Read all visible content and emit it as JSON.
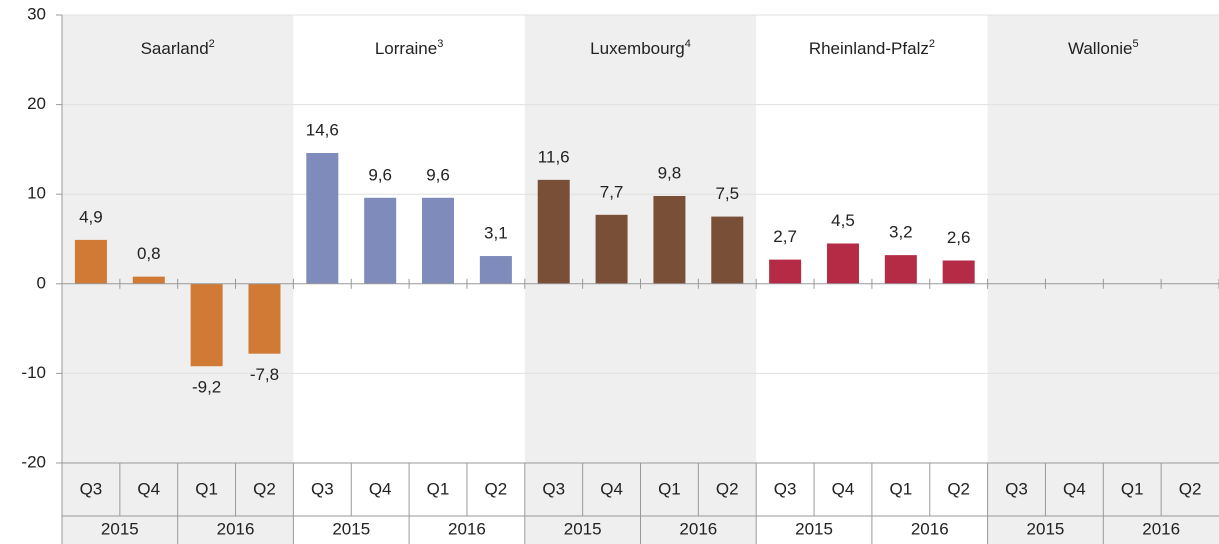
{
  "chart_data": {
    "type": "bar",
    "ylim": [
      -20,
      30
    ],
    "yticks": [
      -20,
      -10,
      0,
      10,
      20,
      30
    ],
    "grid": true,
    "groups": [
      {
        "name": "Saarland",
        "note": "2",
        "color": "#d07a35",
        "shaded": true,
        "categories": [
          "Q3",
          "Q4",
          "Q1",
          "Q2"
        ],
        "years": [
          "2015",
          "2016"
        ],
        "values": [
          4.9,
          0.8,
          -9.2,
          -7.8
        ],
        "value_labels": [
          "4,9",
          "0,8",
          "-9,2",
          "-7,8"
        ]
      },
      {
        "name": "Lorraine",
        "note": "3",
        "color": "#7f8bbb",
        "shaded": false,
        "categories": [
          "Q3",
          "Q4",
          "Q1",
          "Q2"
        ],
        "years": [
          "2015",
          "2016"
        ],
        "values": [
          14.6,
          9.6,
          9.6,
          3.1
        ],
        "value_labels": [
          "14,6",
          "9,6",
          "9,6",
          "3,1"
        ]
      },
      {
        "name": "Luxembourg",
        "note": "4",
        "color": "#7a4f37",
        "shaded": true,
        "categories": [
          "Q3",
          "Q4",
          "Q1",
          "Q2"
        ],
        "years": [
          "2015",
          "2016"
        ],
        "values": [
          11.6,
          7.7,
          9.8,
          7.5
        ],
        "value_labels": [
          "11,6",
          "7,7",
          "9,8",
          "7,5"
        ]
      },
      {
        "name": "Rheinland-Pfalz",
        "note": "2",
        "color": "#b52a45",
        "shaded": false,
        "categories": [
          "Q3",
          "Q4",
          "Q1",
          "Q2"
        ],
        "years": [
          "2015",
          "2016"
        ],
        "values": [
          2.7,
          4.5,
          3.2,
          2.6
        ],
        "value_labels": [
          "2,7",
          "4,5",
          "3,2",
          "2,6"
        ]
      },
      {
        "name": "Wallonie",
        "note": "5",
        "color": "#888888",
        "shaded": true,
        "categories": [
          "Q3",
          "Q4",
          "Q1",
          "Q2"
        ],
        "years": [
          "2015",
          "2016"
        ],
        "values": [
          null,
          null,
          null,
          null
        ],
        "value_labels": [
          null,
          null,
          null,
          null
        ]
      }
    ]
  }
}
